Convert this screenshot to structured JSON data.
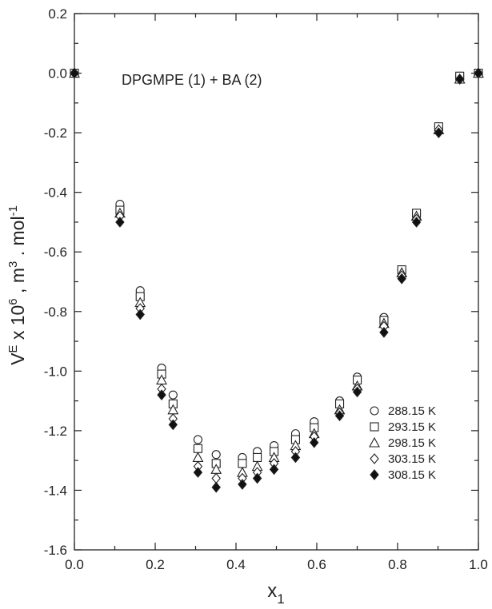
{
  "chart_data": {
    "type": "scatter",
    "title": "",
    "annotation": "DPGMPE (1) + BA (2)",
    "xlabel": {
      "main": "x",
      "sub": "1"
    },
    "ylabel": {
      "p1": "V",
      "sup1": "E",
      "p2": " x 10",
      "sup2": "6",
      "p3": " , m",
      "sup3": "3",
      "p4": " . mol",
      "sup4": "-1"
    },
    "xlim": [
      0.0,
      1.0
    ],
    "ylim": [
      -1.6,
      0.2
    ],
    "xticks": [
      "0.0",
      "0.2",
      "0.4",
      "0.6",
      "0.8",
      "1.0"
    ],
    "yticks": [
      "0.2",
      "0.0",
      "-0.2",
      "-0.4",
      "-0.6",
      "-0.8",
      "-1.0",
      "-1.2",
      "-1.4",
      "-1.6"
    ],
    "legend_position": "lower-right",
    "x": [
      0.0,
      0.1127,
      0.1628,
      0.2159,
      0.2442,
      0.3058,
      0.3509,
      0.4157,
      0.4527,
      0.4942,
      0.5474,
      0.5935,
      0.6565,
      0.7001,
      0.7662,
      0.8103,
      0.8467,
      0.9017,
      0.9538,
      1.0
    ],
    "series": [
      {
        "name": "288.15  K",
        "marker": "circle",
        "values": [
          0.0,
          -0.44,
          -0.73,
          -0.99,
          -1.08,
          -1.23,
          -1.28,
          -1.29,
          -1.27,
          -1.25,
          -1.21,
          -1.17,
          -1.1,
          -1.02,
          -0.82,
          -0.66,
          -0.47,
          -0.18,
          -0.01,
          0.0
        ]
      },
      {
        "name": "293.15  K",
        "marker": "square",
        "values": [
          0.0,
          -0.46,
          -0.75,
          -1.01,
          -1.11,
          -1.26,
          -1.31,
          -1.31,
          -1.29,
          -1.27,
          -1.23,
          -1.19,
          -1.11,
          -1.03,
          -0.83,
          -0.66,
          -0.47,
          -0.18,
          -0.01,
          0.0
        ]
      },
      {
        "name": "298.15  K",
        "marker": "triangle",
        "values": [
          0.0,
          -0.47,
          -0.77,
          -1.03,
          -1.13,
          -1.29,
          -1.33,
          -1.34,
          -1.32,
          -1.29,
          -1.25,
          -1.21,
          -1.13,
          -1.05,
          -0.84,
          -0.67,
          -0.48,
          -0.19,
          -0.02,
          0.0
        ]
      },
      {
        "name": "303.15  K",
        "marker": "diamond-open",
        "values": [
          0.0,
          -0.48,
          -0.79,
          -1.06,
          -1.16,
          -1.32,
          -1.36,
          -1.36,
          -1.34,
          -1.31,
          -1.27,
          -1.22,
          -1.14,
          -1.06,
          -0.85,
          -0.68,
          -0.49,
          -0.19,
          -0.02,
          0.0
        ]
      },
      {
        "name": "308.15  K",
        "marker": "diamond-filled",
        "values": [
          0.0,
          -0.5,
          -0.81,
          -1.08,
          -1.18,
          -1.34,
          -1.39,
          -1.38,
          -1.36,
          -1.33,
          -1.29,
          -1.24,
          -1.15,
          -1.07,
          -0.87,
          -0.69,
          -0.5,
          -0.2,
          -0.02,
          0.0
        ]
      }
    ]
  }
}
